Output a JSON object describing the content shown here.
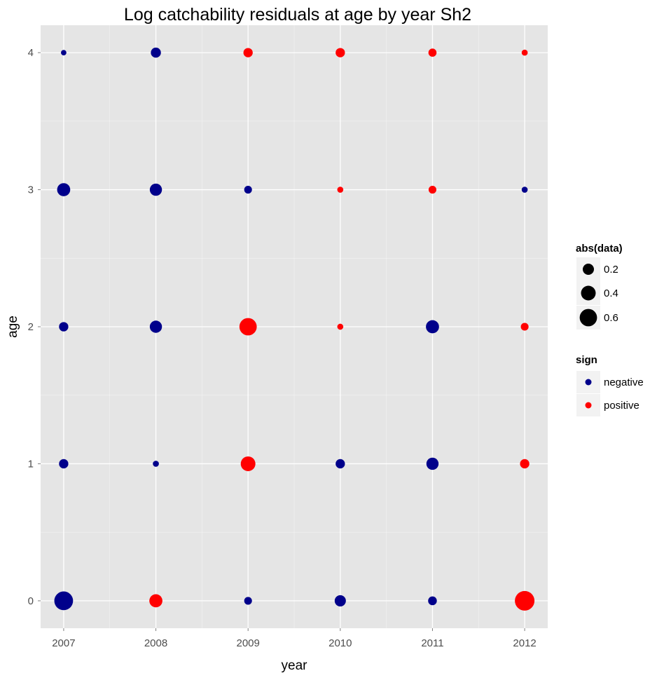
{
  "chart_data": {
    "type": "scatter",
    "title": "Log catchability residuals at age by year Sh2",
    "xlabel": "year",
    "ylabel": "age",
    "x_ticks": [
      "2007",
      "2008",
      "2009",
      "2010",
      "2011",
      "2012"
    ],
    "y_ticks": [
      "0",
      "1",
      "2",
      "3",
      "4"
    ],
    "xlim": [
      2006.75,
      2012.25
    ],
    "ylim": [
      -0.2,
      4.2
    ],
    "grid": true,
    "legend_placement": "right",
    "colors": {
      "negative": "#00008B",
      "positive": "#FF0000",
      "size_key": "#000000",
      "panel": "#E5E5E5",
      "grid": "#FFFFFF"
    },
    "size_legend": {
      "title": "abs(data)",
      "entries": [
        {
          "label": "0.2",
          "value": 0.2
        },
        {
          "label": "0.4",
          "value": 0.4
        },
        {
          "label": "0.6",
          "value": 0.6
        }
      ]
    },
    "color_legend": {
      "title": "sign",
      "entries": [
        {
          "label": "negative",
          "key": "negative"
        },
        {
          "label": "positive",
          "key": "positive"
        }
      ]
    },
    "series": [
      {
        "name": "negative",
        "points": [
          {
            "x": 2007,
            "y": 4,
            "size": 0.02
          },
          {
            "x": 2008,
            "y": 4,
            "size": 0.15
          },
          {
            "x": 2007,
            "y": 3,
            "size": 0.3
          },
          {
            "x": 2008,
            "y": 3,
            "size": 0.25
          },
          {
            "x": 2009,
            "y": 3,
            "size": 0.07
          },
          {
            "x": 2012,
            "y": 3,
            "size": 0.03
          },
          {
            "x": 2007,
            "y": 2,
            "size": 0.12
          },
          {
            "x": 2008,
            "y": 2,
            "size": 0.25
          },
          {
            "x": 2011,
            "y": 2,
            "size": 0.3
          },
          {
            "x": 2007,
            "y": 1,
            "size": 0.12
          },
          {
            "x": 2008,
            "y": 1,
            "size": 0.03
          },
          {
            "x": 2010,
            "y": 1,
            "size": 0.12
          },
          {
            "x": 2011,
            "y": 1,
            "size": 0.25
          },
          {
            "x": 2007,
            "y": 0,
            "size": 0.72
          },
          {
            "x": 2009,
            "y": 0,
            "size": 0.07
          },
          {
            "x": 2010,
            "y": 0,
            "size": 0.2
          },
          {
            "x": 2011,
            "y": 0,
            "size": 0.1
          }
        ]
      },
      {
        "name": "positive",
        "points": [
          {
            "x": 2009,
            "y": 4,
            "size": 0.12
          },
          {
            "x": 2010,
            "y": 4,
            "size": 0.12
          },
          {
            "x": 2011,
            "y": 4,
            "size": 0.08
          },
          {
            "x": 2012,
            "y": 4,
            "size": 0.03
          },
          {
            "x": 2010,
            "y": 3,
            "size": 0.03
          },
          {
            "x": 2011,
            "y": 3,
            "size": 0.07
          },
          {
            "x": 2009,
            "y": 2,
            "size": 0.6
          },
          {
            "x": 2010,
            "y": 2,
            "size": 0.03
          },
          {
            "x": 2012,
            "y": 2,
            "size": 0.07
          },
          {
            "x": 2009,
            "y": 1,
            "size": 0.4
          },
          {
            "x": 2012,
            "y": 1,
            "size": 0.12
          },
          {
            "x": 2008,
            "y": 0,
            "size": 0.3
          },
          {
            "x": 2012,
            "y": 0,
            "size": 0.8
          }
        ]
      }
    ]
  }
}
